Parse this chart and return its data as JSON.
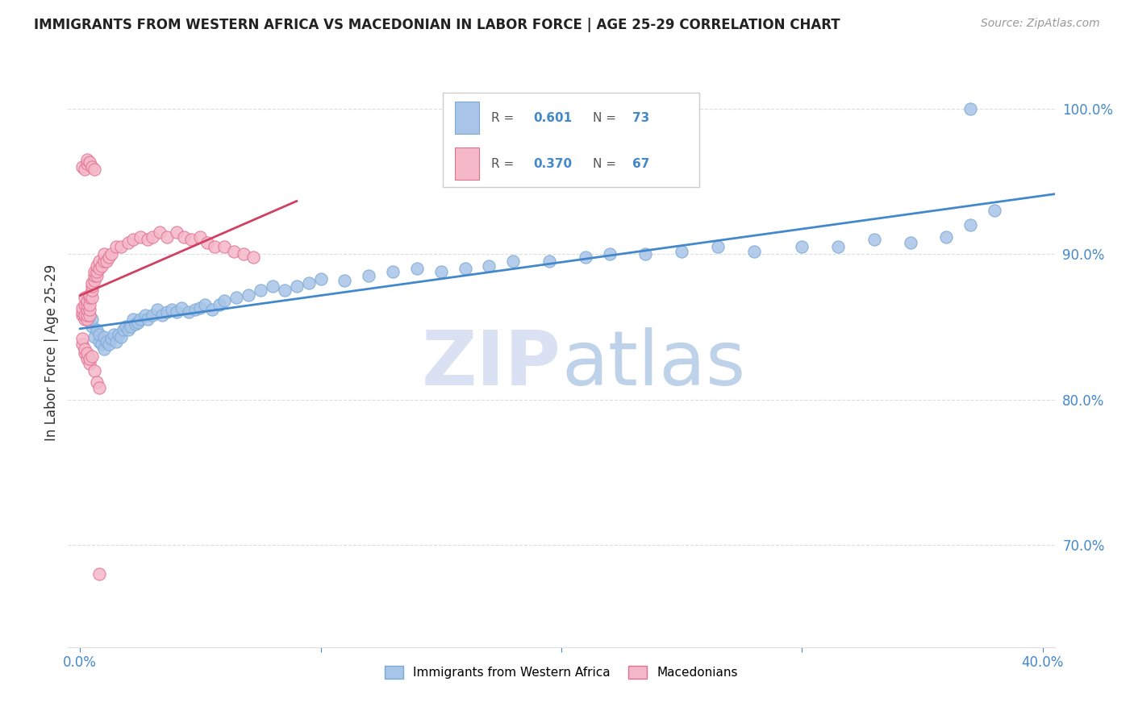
{
  "title": "IMMIGRANTS FROM WESTERN AFRICA VS MACEDONIAN IN LABOR FORCE | AGE 25-29 CORRELATION CHART",
  "source": "Source: ZipAtlas.com",
  "ylabel": "In Labor Force | Age 25-29",
  "R_blue": 0.601,
  "N_blue": 73,
  "R_pink": 0.37,
  "N_pink": 67,
  "blue_scatter_color": "#A8C4E8",
  "blue_edge_color": "#7AAAD4",
  "pink_scatter_color": "#F5B8C8",
  "pink_edge_color": "#E07090",
  "blue_line_color": "#4488CC",
  "pink_line_color": "#D04060",
  "watermark_color": "#C8D8F0",
  "legend_labels": [
    "Immigrants from Western Africa",
    "Macedonians"
  ],
  "ytick_color": "#4488CC",
  "xtick_color": "#4488CC",
  "grid_color": "#DDDDDD",
  "title_color": "#222222",
  "ylabel_color": "#333333",
  "source_color": "#999999",
  "blue_points_x": [
    0.002,
    0.003,
    0.005,
    0.005,
    0.006,
    0.007,
    0.008,
    0.008,
    0.009,
    0.01,
    0.01,
    0.011,
    0.012,
    0.013,
    0.014,
    0.015,
    0.016,
    0.017,
    0.018,
    0.019,
    0.02,
    0.021,
    0.022,
    0.023,
    0.024,
    0.025,
    0.027,
    0.028,
    0.03,
    0.032,
    0.034,
    0.036,
    0.038,
    0.04,
    0.042,
    0.045,
    0.048,
    0.05,
    0.052,
    0.055,
    0.058,
    0.06,
    0.065,
    0.07,
    0.075,
    0.08,
    0.085,
    0.09,
    0.095,
    0.1,
    0.11,
    0.12,
    0.13,
    0.14,
    0.15,
    0.16,
    0.17,
    0.18,
    0.195,
    0.21,
    0.22,
    0.235,
    0.25,
    0.265,
    0.28,
    0.3,
    0.315,
    0.33,
    0.345,
    0.36,
    0.37,
    0.38,
    0.37
  ],
  "blue_points_y": [
    0.858,
    0.862,
    0.85,
    0.855,
    0.843,
    0.848,
    0.84,
    0.845,
    0.838,
    0.835,
    0.843,
    0.84,
    0.838,
    0.842,
    0.845,
    0.84,
    0.845,
    0.843,
    0.848,
    0.85,
    0.848,
    0.85,
    0.855,
    0.852,
    0.853,
    0.855,
    0.858,
    0.855,
    0.858,
    0.862,
    0.858,
    0.86,
    0.862,
    0.86,
    0.863,
    0.86,
    0.862,
    0.863,
    0.865,
    0.862,
    0.865,
    0.868,
    0.87,
    0.872,
    0.875,
    0.878,
    0.875,
    0.878,
    0.88,
    0.883,
    0.882,
    0.885,
    0.888,
    0.89,
    0.888,
    0.89,
    0.892,
    0.895,
    0.895,
    0.898,
    0.9,
    0.9,
    0.902,
    0.905,
    0.902,
    0.905,
    0.905,
    0.91,
    0.908,
    0.912,
    0.92,
    0.93,
    1.0
  ],
  "pink_points_x": [
    0.001,
    0.001,
    0.001,
    0.002,
    0.002,
    0.002,
    0.002,
    0.003,
    0.003,
    0.003,
    0.003,
    0.003,
    0.004,
    0.004,
    0.004,
    0.004,
    0.004,
    0.005,
    0.005,
    0.005,
    0.005,
    0.006,
    0.006,
    0.006,
    0.007,
    0.007,
    0.007,
    0.008,
    0.008,
    0.009,
    0.01,
    0.01,
    0.011,
    0.012,
    0.013,
    0.015,
    0.017,
    0.02,
    0.022,
    0.025,
    0.028,
    0.03,
    0.033,
    0.036,
    0.04,
    0.043,
    0.046,
    0.05,
    0.053,
    0.056,
    0.06,
    0.064,
    0.068,
    0.072,
    0.001,
    0.001,
    0.002,
    0.002,
    0.003,
    0.003,
    0.004,
    0.004,
    0.005,
    0.006,
    0.007,
    0.008
  ],
  "pink_points_y": [
    0.858,
    0.86,
    0.863,
    0.855,
    0.858,
    0.865,
    0.87,
    0.855,
    0.858,
    0.862,
    0.865,
    0.868,
    0.858,
    0.862,
    0.865,
    0.87,
    0.872,
    0.87,
    0.875,
    0.878,
    0.88,
    0.882,
    0.885,
    0.888,
    0.885,
    0.888,
    0.892,
    0.89,
    0.895,
    0.892,
    0.895,
    0.9,
    0.895,
    0.898,
    0.9,
    0.905,
    0.905,
    0.908,
    0.91,
    0.912,
    0.91,
    0.912,
    0.915,
    0.912,
    0.915,
    0.912,
    0.91,
    0.912,
    0.908,
    0.905,
    0.905,
    0.902,
    0.9,
    0.898,
    0.838,
    0.842,
    0.832,
    0.835,
    0.828,
    0.832,
    0.825,
    0.828,
    0.83,
    0.82,
    0.812,
    0.808
  ],
  "extra_pink_x": [
    0.001,
    0.002,
    0.003,
    0.003,
    0.004,
    0.005,
    0.006
  ],
  "extra_pink_y": [
    0.96,
    0.958,
    0.962,
    0.965,
    0.963,
    0.96,
    0.958
  ],
  "outlier_pink_x": [
    0.008
  ],
  "outlier_pink_y": [
    0.68
  ],
  "xlim_min": -0.005,
  "xlim_max": 0.405,
  "ylim_min": 0.63,
  "ylim_max": 1.035,
  "yticks": [
    0.7,
    0.8,
    0.9,
    1.0
  ],
  "yticklabels": [
    "70.0%",
    "80.0%",
    "90.0%",
    "100.0%"
  ],
  "xticks": [
    0.0,
    0.1,
    0.2,
    0.3,
    0.4
  ],
  "xticklabels": [
    "0.0%",
    "",
    "",
    "",
    "40.0%"
  ]
}
